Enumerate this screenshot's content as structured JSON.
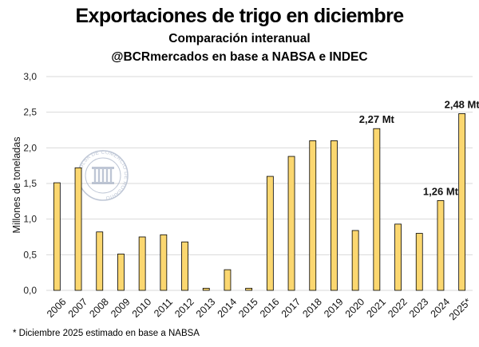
{
  "title": "Exportaciones de trigo en diciembre",
  "subtitle_1": "Comparación interanual",
  "subtitle_2": "@BCRmercados en base a NABSA e INDEC",
  "footnote": "* Diciembre 2025 estimado en base a NABSA",
  "watermark": {
    "ring_text": "BOLSA DE COMERCIO DE ROSARIO",
    "color": "#a9b4c8"
  },
  "chart_data": {
    "type": "bar",
    "categories": [
      "2006",
      "2007",
      "2008",
      "2009",
      "2010",
      "2011",
      "2012",
      "2013",
      "2014",
      "2015",
      "2016",
      "2017",
      "2018",
      "2019",
      "2020",
      "2021",
      "2022",
      "2023",
      "2024",
      "2025*"
    ],
    "values": [
      1.51,
      1.72,
      0.82,
      0.51,
      0.75,
      0.78,
      0.68,
      0.03,
      0.29,
      0.03,
      1.6,
      1.88,
      2.1,
      2.1,
      0.84,
      2.27,
      0.93,
      0.8,
      1.26,
      2.48
    ],
    "ylabel": "Millones de toneladas",
    "ylim": [
      0,
      3.0
    ],
    "yticks": [
      "0,0",
      "0,5",
      "1,0",
      "1,5",
      "2,0",
      "2,5",
      "3,0"
    ],
    "ytick_values": [
      0,
      0.5,
      1.0,
      1.5,
      2.0,
      2.5,
      3.0
    ],
    "grid": true,
    "bar_fill": "#fbd770",
    "bar_stroke": "#000000",
    "data_labels": [
      {
        "category": "2021",
        "text": "2,27 Mt"
      },
      {
        "category": "2024",
        "text": "1,26 Mt"
      },
      {
        "category": "2025*",
        "text": "2,48 Mt"
      }
    ]
  }
}
